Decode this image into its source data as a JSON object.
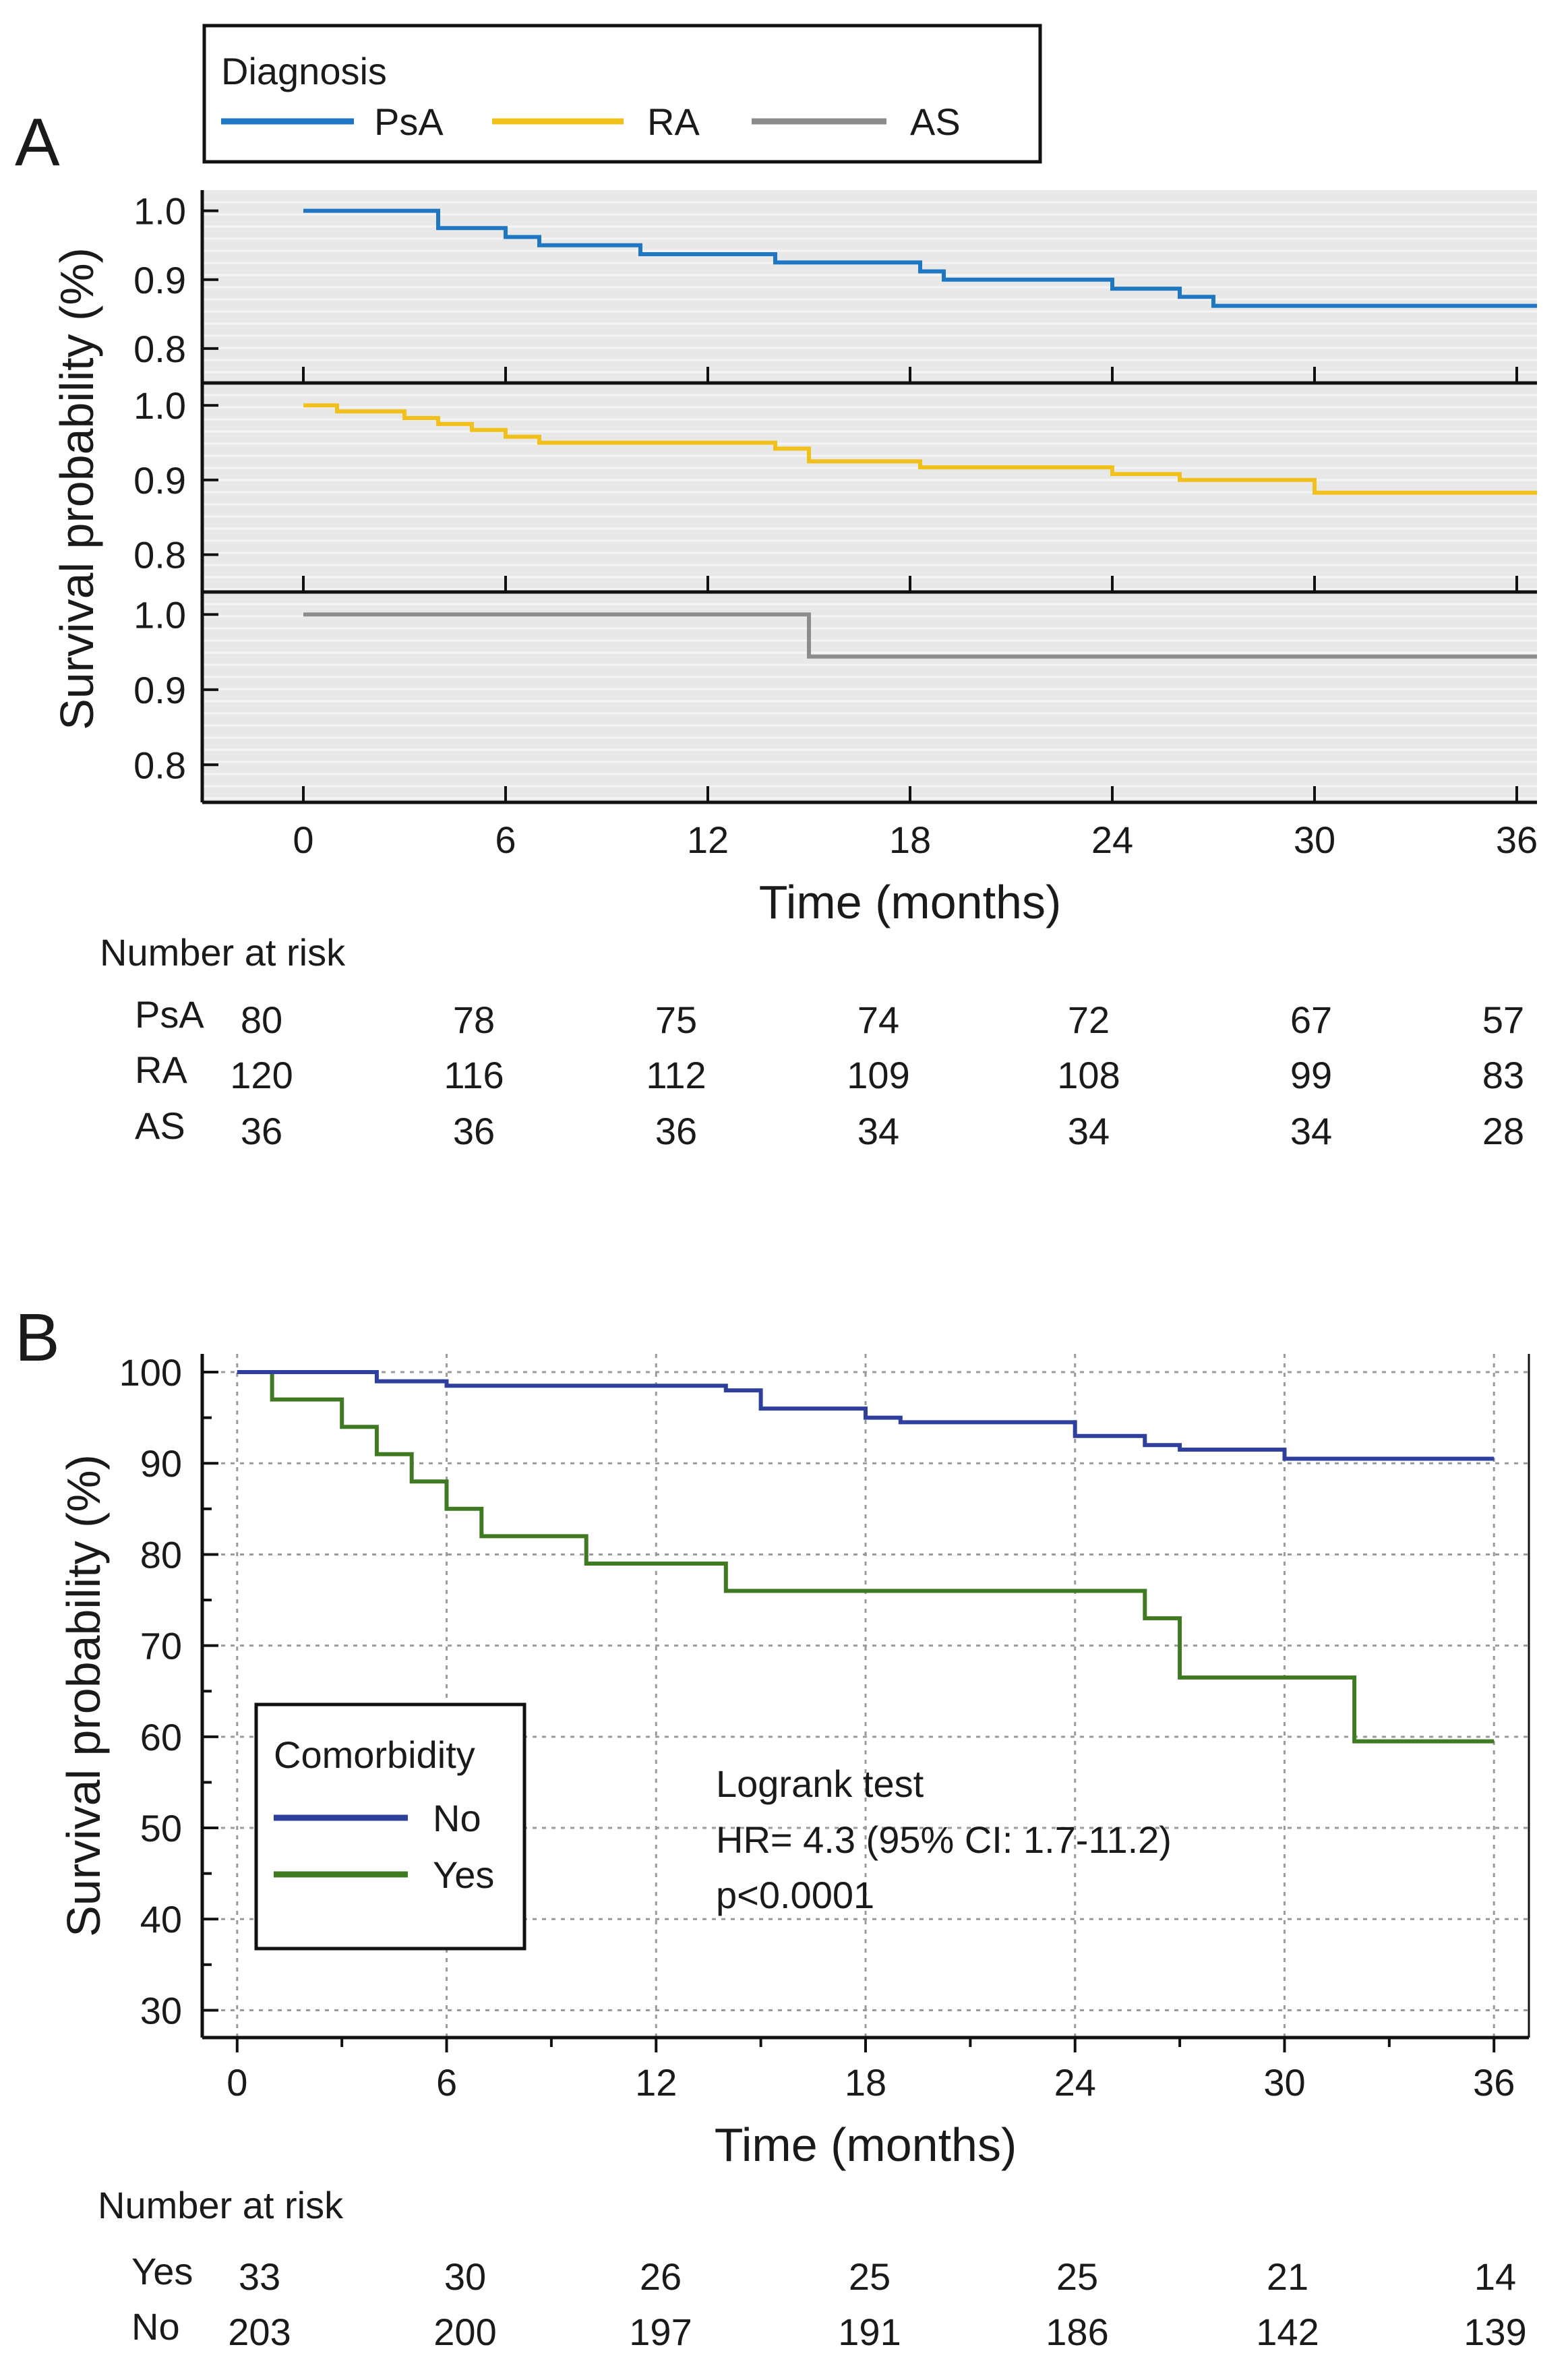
{
  "panels": {
    "a_label": "A",
    "b_label": "B"
  },
  "chart_data": [
    {
      "type": "line",
      "step": true,
      "panel": "A",
      "title": "",
      "xlabel": "Time (months)",
      "ylabel": "Survival probability (%)",
      "xlim": [
        -3,
        36.6
      ],
      "x_ticks": [
        0,
        6,
        12,
        18,
        24,
        30,
        36
      ],
      "x_tick_labels": [
        "0",
        "6",
        "12",
        "18",
        "24",
        "30",
        "36"
      ],
      "ylim": [
        0.75,
        1.03
      ],
      "y_ticks": [
        0.8,
        0.9,
        1.0
      ],
      "y_tick_labels": [
        "0.8",
        "0.9",
        "1.0"
      ],
      "grid": true,
      "legend": {
        "title": "Diagnosis",
        "position": "top-left",
        "entries": [
          {
            "name": "PsA",
            "color": "#1f77c4"
          },
          {
            "name": "RA",
            "color": "#f2c01a"
          },
          {
            "name": "AS",
            "color": "#8c8c8c"
          }
        ]
      },
      "series": [
        {
          "name": "PsA",
          "color": "#1f77c4",
          "points": [
            [
              0,
              1.0
            ],
            [
              4,
              1.0
            ],
            [
              4,
              0.975
            ],
            [
              6,
              0.975
            ],
            [
              6,
              0.962
            ],
            [
              7,
              0.962
            ],
            [
              7,
              0.95
            ],
            [
              10,
              0.95
            ],
            [
              10,
              0.937
            ],
            [
              14,
              0.937
            ],
            [
              14,
              0.925
            ],
            [
              18.3,
              0.925
            ],
            [
              18.3,
              0.912
            ],
            [
              19,
              0.912
            ],
            [
              19,
              0.9
            ],
            [
              24,
              0.9
            ],
            [
              24,
              0.887
            ],
            [
              26,
              0.887
            ],
            [
              26,
              0.875
            ],
            [
              27,
              0.875
            ],
            [
              27,
              0.862
            ],
            [
              36.6,
              0.862
            ]
          ]
        },
        {
          "name": "RA",
          "color": "#f2c01a",
          "points": [
            [
              0,
              1.0
            ],
            [
              1,
              1.0
            ],
            [
              1,
              0.992
            ],
            [
              3,
              0.992
            ],
            [
              3,
              0.983
            ],
            [
              4,
              0.983
            ],
            [
              4,
              0.975
            ],
            [
              5,
              0.975
            ],
            [
              5,
              0.967
            ],
            [
              6,
              0.967
            ],
            [
              6,
              0.958
            ],
            [
              7,
              0.958
            ],
            [
              7,
              0.95
            ],
            [
              14,
              0.95
            ],
            [
              14,
              0.942
            ],
            [
              15,
              0.942
            ],
            [
              15,
              0.925
            ],
            [
              18.3,
              0.925
            ],
            [
              18.3,
              0.917
            ],
            [
              24,
              0.917
            ],
            [
              24,
              0.908
            ],
            [
              26,
              0.908
            ],
            [
              26,
              0.9
            ],
            [
              30,
              0.9
            ],
            [
              30,
              0.883
            ],
            [
              36.6,
              0.883
            ]
          ]
        },
        {
          "name": "AS",
          "color": "#8c8c8c",
          "points": [
            [
              0,
              1.0
            ],
            [
              15,
              1.0
            ],
            [
              15,
              0.944
            ],
            [
              36.6,
              0.944
            ]
          ]
        }
      ],
      "risk_table": {
        "title": "Number at risk",
        "rows": [
          {
            "label": "PsA",
            "values": [
              "80",
              "78",
              "75",
              "74",
              "72",
              "67",
              "57"
            ]
          },
          {
            "label": "RA",
            "values": [
              "120",
              "116",
              "112",
              "109",
              "108",
              "99",
              "83"
            ]
          },
          {
            "label": "AS",
            "values": [
              "36",
              "36",
              "36",
              "34",
              "34",
              "34",
              "28"
            ]
          }
        ]
      }
    },
    {
      "type": "line",
      "step": true,
      "panel": "B",
      "title": "",
      "xlabel": "Time (months)",
      "ylabel": "Survival probability (%)",
      "xlim": [
        -1,
        37
      ],
      "x_ticks": [
        0,
        6,
        12,
        18,
        24,
        30,
        36
      ],
      "x_tick_labels": [
        "0",
        "6",
        "12",
        "18",
        "24",
        "30",
        "36"
      ],
      "ylim": [
        27,
        102
      ],
      "y_ticks": [
        30,
        40,
        50,
        60,
        70,
        80,
        90,
        100
      ],
      "y_tick_labels": [
        "30",
        "40",
        "50",
        "60",
        "70",
        "80",
        "90",
        "100"
      ],
      "grid": true,
      "legend": {
        "title": "Comorbidity",
        "position": "bottom-left",
        "entries": [
          {
            "name": "No",
            "color": "#2e3f9e"
          },
          {
            "name": "Yes",
            "color": "#3f7a22"
          }
        ]
      },
      "annotations": [
        "Logrank test",
        "HR= 4.3 (95% CI: 1.7-11.2)",
        "p<0.0001"
      ],
      "series": [
        {
          "name": "No",
          "color": "#2e3f9e",
          "points": [
            [
              0,
              100
            ],
            [
              4,
              100
            ],
            [
              4,
              99
            ],
            [
              6,
              99
            ],
            [
              6,
              98.5
            ],
            [
              14,
              98.5
            ],
            [
              14,
              98
            ],
            [
              15,
              98
            ],
            [
              15,
              96
            ],
            [
              18,
              96
            ],
            [
              18,
              95
            ],
            [
              19,
              95
            ],
            [
              19,
              94.5
            ],
            [
              24,
              94.5
            ],
            [
              24,
              93
            ],
            [
              26,
              93
            ],
            [
              26,
              92
            ],
            [
              27,
              92
            ],
            [
              27,
              91.5
            ],
            [
              30,
              91.5
            ],
            [
              30,
              90.5
            ],
            [
              36,
              90.5
            ]
          ]
        },
        {
          "name": "Yes",
          "color": "#3f7a22",
          "points": [
            [
              0,
              100
            ],
            [
              1,
              100
            ],
            [
              1,
              97
            ],
            [
              3,
              97
            ],
            [
              3,
              94
            ],
            [
              4,
              94
            ],
            [
              4,
              91
            ],
            [
              5,
              91
            ],
            [
              5,
              88
            ],
            [
              6,
              88
            ],
            [
              6,
              85
            ],
            [
              7,
              85
            ],
            [
              7,
              82
            ],
            [
              10,
              82
            ],
            [
              10,
              79
            ],
            [
              14,
              79
            ],
            [
              14,
              76
            ],
            [
              26,
              76
            ],
            [
              26,
              73
            ],
            [
              27,
              73
            ],
            [
              27,
              66.5
            ],
            [
              32,
              66.5
            ],
            [
              32,
              59.5
            ],
            [
              36,
              59.5
            ]
          ]
        }
      ],
      "risk_table": {
        "title": "Number at risk",
        "rows": [
          {
            "label": "Yes",
            "values": [
              "33",
              "30",
              "26",
              "25",
              "25",
              "21",
              "14"
            ]
          },
          {
            "label": "No",
            "values": [
              "203",
              "200",
              "197",
              "191",
              "186",
              "142",
              "139"
            ]
          }
        ]
      }
    }
  ]
}
